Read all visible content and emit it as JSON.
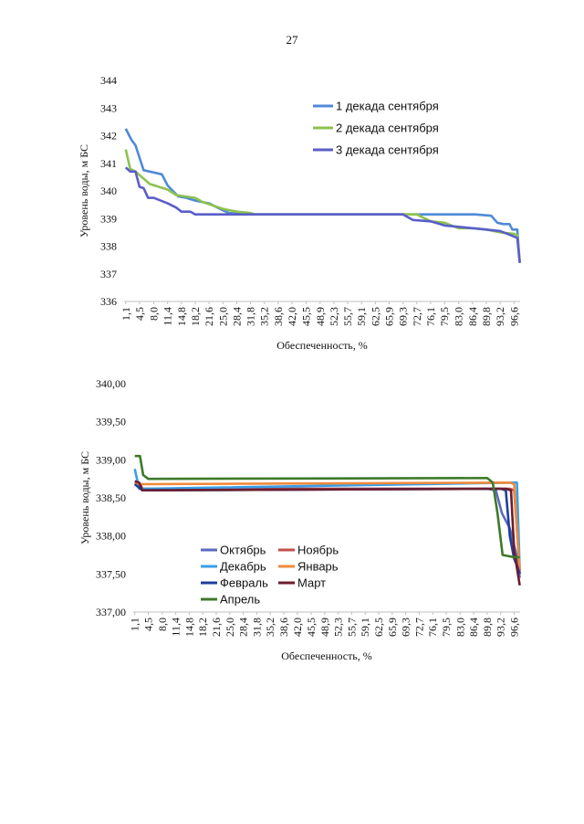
{
  "page": {
    "number": "27"
  },
  "chart_data": [
    {
      "type": "line",
      "title": "",
      "xlabel": "Обеспеченность, %",
      "ylabel": "Уровень воды, м БС",
      "ylim": [
        336,
        344
      ],
      "yticks": [
        "336",
        "337",
        "338",
        "339",
        "340",
        "341",
        "342",
        "343",
        "344"
      ],
      "x": [
        "1,1",
        "4,5",
        "8,0",
        "11,4",
        "14,8",
        "18,2",
        "21,6",
        "25,0",
        "28,4",
        "31,8",
        "35,2",
        "38,6",
        "42,0",
        "45,5",
        "48,9",
        "52,3",
        "55,7",
        "59,1",
        "62,5",
        "65,9",
        "69,3",
        "72,7",
        "76,1",
        "79,5",
        "83,0",
        "86,4",
        "89,8",
        "93,2",
        "96,6"
      ],
      "series": [
        {
          "name": "1 декада сентября",
          "color": "#4f8ad8",
          "points": [
            [
              1.1,
              342.25
            ],
            [
              2.5,
              341.85
            ],
            [
              3.5,
              341.65
            ],
            [
              5.5,
              340.75
            ],
            [
              7,
              340.7
            ],
            [
              10,
              340.6
            ],
            [
              11.4,
              340.2
            ],
            [
              14,
              339.8
            ],
            [
              16,
              339.75
            ],
            [
              18.2,
              339.65
            ],
            [
              21.6,
              339.55
            ],
            [
              25,
              339.3
            ],
            [
              26.5,
              339.2
            ],
            [
              31.8,
              339.15
            ],
            [
              69.3,
              339.15
            ],
            [
              87,
              339.15
            ],
            [
              91,
              339.1
            ],
            [
              92.5,
              338.85
            ],
            [
              94,
              338.8
            ],
            [
              95.5,
              338.8
            ],
            [
              96.2,
              338.6
            ],
            [
              97.4,
              338.6
            ],
            [
              98,
              337.4
            ]
          ]
        },
        {
          "name": "2 декада сентября",
          "color": "#8dc24f",
          "points": [
            [
              1.1,
              341.5
            ],
            [
              2.2,
              340.8
            ],
            [
              3.5,
              340.7
            ],
            [
              7,
              340.25
            ],
            [
              11.4,
              340.05
            ],
            [
              13.5,
              339.85
            ],
            [
              18.2,
              339.75
            ],
            [
              20,
              339.6
            ],
            [
              23,
              339.45
            ],
            [
              25,
              339.35
            ],
            [
              28.4,
              339.25
            ],
            [
              31.8,
              339.2
            ],
            [
              33,
              339.15
            ],
            [
              69.3,
              339.15
            ],
            [
              72.7,
              339.15
            ],
            [
              74,
              339.05
            ],
            [
              76.1,
              338.9
            ],
            [
              79.5,
              338.85
            ],
            [
              83,
              338.65
            ],
            [
              86.4,
              338.65
            ],
            [
              89.8,
              338.6
            ],
            [
              93.2,
              338.5
            ],
            [
              96.6,
              338.45
            ],
            [
              97.4,
              338.4
            ],
            [
              98,
              337.45
            ]
          ]
        },
        {
          "name": "3 декада сентября",
          "color": "#5a5ec8",
          "points": [
            [
              1.1,
              340.85
            ],
            [
              2.2,
              340.7
            ],
            [
              3.5,
              340.7
            ],
            [
              4.5,
              340.15
            ],
            [
              5.5,
              340.1
            ],
            [
              6.6,
              339.75
            ],
            [
              8,
              339.75
            ],
            [
              11.4,
              339.55
            ],
            [
              13.5,
              339.4
            ],
            [
              14.8,
              339.25
            ],
            [
              17,
              339.25
            ],
            [
              18.2,
              339.15
            ],
            [
              69.3,
              339.15
            ],
            [
              71.7,
              338.95
            ],
            [
              76.1,
              338.9
            ],
            [
              79.5,
              338.75
            ],
            [
              83,
              338.7
            ],
            [
              86.4,
              338.65
            ],
            [
              89.8,
              338.6
            ],
            [
              93.2,
              338.55
            ],
            [
              96.6,
              338.35
            ],
            [
              97.4,
              338.3
            ],
            [
              98,
              337.4
            ]
          ]
        }
      ]
    },
    {
      "type": "line",
      "title": "",
      "xlabel": "Обеспеченность, %",
      "ylabel": "Уровень воды, м БС",
      "ylim": [
        337,
        340
      ],
      "yticks": [
        "337,00",
        "337,50",
        "338,00",
        "338,50",
        "339,00",
        "339,50",
        "340,00"
      ],
      "x": [
        "1,1",
        "4,5",
        "8,0",
        "11,4",
        "14,8",
        "18,2",
        "21,6",
        "25,0",
        "28,4",
        "31,8",
        "35,2",
        "38,6",
        "42,0",
        "45,5",
        "48,9",
        "52,3",
        "55,7",
        "59,1",
        "62,5",
        "65,9",
        "69,3",
        "72,7",
        "76,1",
        "79,5",
        "83,0",
        "86,4",
        "89,8",
        "93,2",
        "96,6"
      ],
      "series": [
        {
          "name": "Октябрь",
          "color": "#5a6abf",
          "points": [
            [
              1.1,
              338.7
            ],
            [
              2.2,
              338.68
            ],
            [
              3,
              338.62
            ],
            [
              89.8,
              338.62
            ],
            [
              92,
              338.6
            ],
            [
              93.5,
              338.3
            ],
            [
              95.5,
              338.1
            ],
            [
              97.4,
              337.7
            ],
            [
              98,
              337.45
            ]
          ]
        },
        {
          "name": "Ноябрь",
          "color": "#c0504d",
          "points": [
            [
              1.1,
              338.7
            ],
            [
              2.5,
              338.68
            ],
            [
              3,
              338.62
            ],
            [
              95.5,
              338.62
            ],
            [
              96.6,
              338.6
            ],
            [
              97.4,
              338.0
            ],
            [
              98,
              337.5
            ]
          ]
        },
        {
          "name": "Декабрь",
          "color": "#3a9ee8",
          "points": [
            [
              1.1,
              338.88
            ],
            [
              2.2,
              338.62
            ],
            [
              3,
              338.62
            ],
            [
              96.6,
              338.7
            ],
            [
              97.3,
              338.7
            ],
            [
              98,
              337.55
            ]
          ]
        },
        {
          "name": "Январь",
          "color": "#f08a3c",
          "points": [
            [
              1.1,
              338.7
            ],
            [
              2.2,
              338.68
            ],
            [
              3,
              338.68
            ],
            [
              95.5,
              338.7
            ],
            [
              96.6,
              338.68
            ],
            [
              97.4,
              338.0
            ],
            [
              98,
              337.55
            ]
          ]
        },
        {
          "name": "Февраль",
          "color": "#1f3f9c",
          "points": [
            [
              1.1,
              338.68
            ],
            [
              2.5,
              338.62
            ],
            [
              3,
              338.6
            ],
            [
              93.2,
              338.62
            ],
            [
              94.5,
              338.6
            ],
            [
              95.5,
              338.0
            ],
            [
              96.6,
              337.7
            ],
            [
              97.4,
              337.6
            ],
            [
              98,
              337.5
            ]
          ]
        },
        {
          "name": "Март",
          "color": "#6b1d2e",
          "points": [
            [
              1.1,
              338.72
            ],
            [
              2.2,
              338.7
            ],
            [
              3,
              338.6
            ],
            [
              94.5,
              338.62
            ],
            [
              95.8,
              338.6
            ],
            [
              96.6,
              337.8
            ],
            [
              98,
              337.35
            ]
          ]
        },
        {
          "name": "Апрель",
          "color": "#3d7a2a",
          "points": [
            [
              1.1,
              339.05
            ],
            [
              2.4,
              339.05
            ],
            [
              3.2,
              338.8
            ],
            [
              4.5,
              338.75
            ],
            [
              89.8,
              338.76
            ],
            [
              91.2,
              338.7
            ],
            [
              92.4,
              338.3
            ],
            [
              93.7,
              337.75
            ],
            [
              96.6,
              337.72
            ],
            [
              98,
              337.72
            ]
          ]
        }
      ]
    }
  ]
}
